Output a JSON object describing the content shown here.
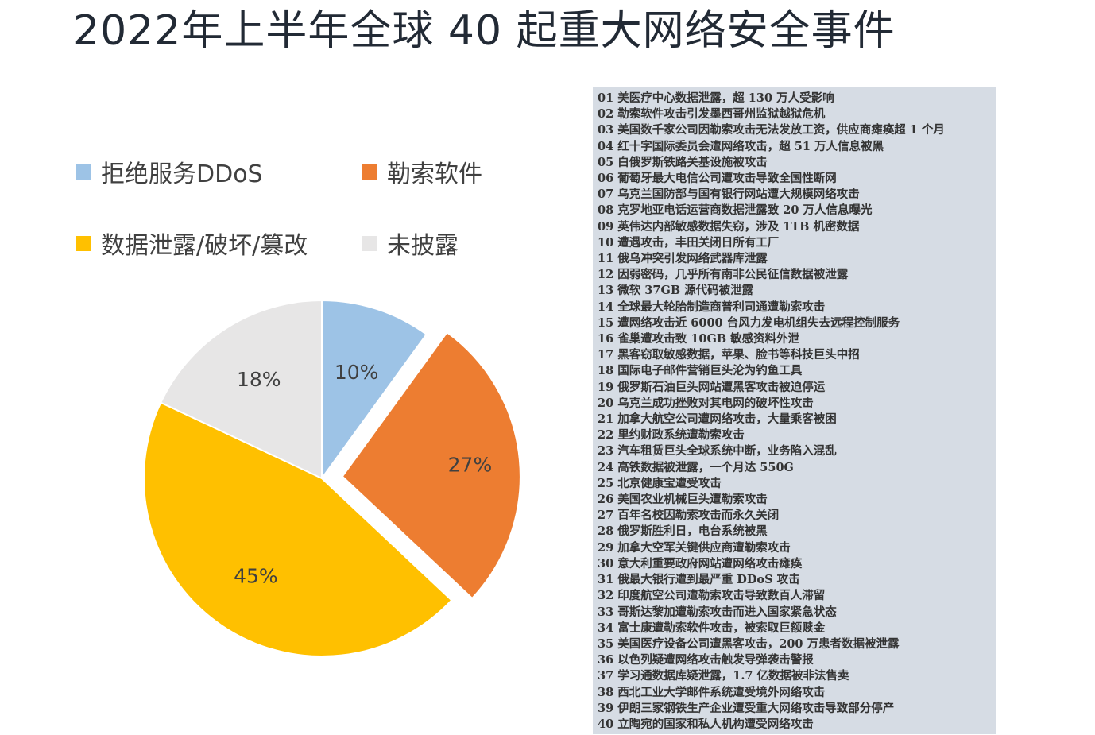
{
  "title": "2022年上半年全球 40 起重大网络安全事件",
  "chart_data": {
    "type": "pie",
    "start_angle_deg": 0,
    "direction": "clockwise",
    "exploded": [
      "勒索软件"
    ],
    "slices": [
      {
        "name": "拒绝服务DDoS",
        "value": 10,
        "label": "10%",
        "color": "#9dc3e6"
      },
      {
        "name": "勒索软件",
        "value": 27,
        "label": "27%",
        "color": "#ed7d31"
      },
      {
        "name": "数据泄露/破坏/篡改",
        "value": 45,
        "label": "45%",
        "color": "#ffc000"
      },
      {
        "name": "未披露",
        "value": 18,
        "label": "18%",
        "color": "#e7e6e6"
      }
    ],
    "legend_position": "top"
  },
  "events": [
    "01 美医疗中心数据泄露，超 130 万人受影响",
    "02 勒索软件攻击引发墨西哥州监狱越狱危机",
    "03 美国数千家公司因勒索攻击无法发放工资，供应商瘫痪超 1 个月",
    "04 红十字国际委员会遭网络攻击，超 51 万人信息被黑",
    "05 白俄罗斯铁路关基设施被攻击",
    "06 葡萄牙最大电信公司遭攻击导致全国性断网",
    "07 乌克兰国防部与国有银行网站遭大规模网络攻击",
    "08 克罗地亚电话运营商数据泄露致 20 万人信息曝光",
    "09 英伟达内部敏感数据失窃，涉及 1TB 机密数据",
    "10 遭遇攻击，丰田关闭日所有工厂",
    "11 俄乌冲突引发网络武器库泄露",
    "12 因弱密码，几乎所有南非公民征信数据被泄露",
    "13 微软 37GB 源代码被泄露",
    "14 全球最大轮胎制造商普利司通遭勒索攻击",
    "15 遭网络攻击近 6000 台风力发电机组失去远程控制服务",
    "16 雀巢遭攻击致 10GB 敏感资料外泄",
    "17 黑客窃取敏感数据，苹果、脸书等科技巨头中招",
    "18 国际电子邮件营销巨头沦为钓鱼工具",
    "19 俄罗斯石油巨头网站遭黑客攻击被迫停运",
    "20 乌克兰成功挫败对其电网的破坏性攻击",
    "21 加拿大航空公司遭网络攻击，大量乘客被困",
    "22 里约财政系统遭勒索攻击",
    "23 汽车租赁巨头全球系统中断，业务陷入混乱",
    "24 高铁数据被泄露，一个月达 550G",
    "25 北京健康宝遭受攻击",
    "26 美国农业机械巨头遭勒索攻击",
    "27 百年名校因勒索攻击而永久关闭",
    "28 俄罗斯胜利日，电台系统被黑",
    "29 加拿大空军关键供应商遭勒索攻击",
    "30 意大利重要政府网站遭网络攻击瘫痪",
    "31 俄最大银行遭到最严重 DDoS 攻击",
    "32 印度航空公司遭勒索攻击导致数百人滞留",
    "33 哥斯达黎加遭勒索攻击而进入国家紧急状态",
    "34 富士康遭勒索软件攻击，被索取巨额赎金",
    "35 美国医疗设备公司遭黑客攻击，200 万患者数据被泄露",
    "36 以色列疑遭网络攻击触发导弹袭击警报",
    "37 学习通数据库疑泄露，1.7 亿数据被非法售卖",
    "38 西北工业大学邮件系统遭受境外网络攻击",
    "39 伊朗三家钢铁生产企业遭受重大网络攻击导致部分停产",
    "40 立陶宛的国家和私人机构遭受网络攻击"
  ]
}
